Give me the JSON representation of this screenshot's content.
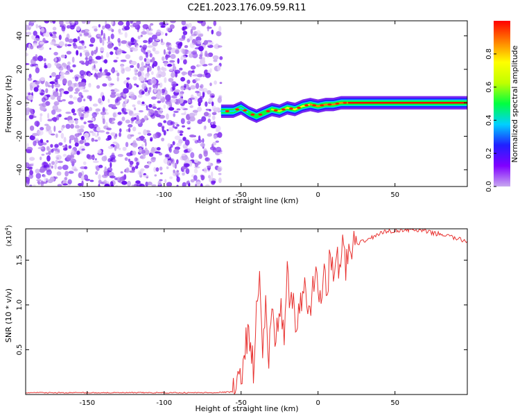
{
  "title": "C2E1.2023.176.09.59.R11",
  "chart_data": [
    {
      "type": "heatmap",
      "xlabel": "Height of straight line (km)",
      "ylabel": "Frequency (Hz)",
      "xlim": [
        -190,
        97
      ],
      "ylim": [
        -50,
        49
      ],
      "xticks": [
        -150,
        -100,
        -50,
        0,
        50
      ],
      "yticks": [
        -40,
        -20,
        0,
        20,
        40
      ],
      "grid": false,
      "colorbar": {
        "label": "Normalized spectral amplitude",
        "range": [
          0,
          1
        ],
        "ticks": [
          "0.0",
          "0.2",
          "0.4",
          "0.6",
          "0.8"
        ],
        "colormap": [
          "#c8a8f0",
          "#8000ff",
          "#2020ff",
          "#00d0ff",
          "#00ff40",
          "#c0ff00",
          "#ffff00",
          "#ff8000",
          "#ff0000"
        ]
      },
      "noise_region_x": [
        -190,
        -63
      ],
      "signal_ridge": {
        "x": [
          -63,
          -55,
          -50,
          -45,
          -40,
          -35,
          -30,
          -25,
          -20,
          -15,
          -10,
          -5,
          0,
          5,
          10,
          15,
          20,
          30,
          50,
          70,
          97
        ],
        "y": [
          -5,
          -5,
          -3,
          -6,
          -8,
          -6,
          -4,
          -5,
          -3,
          -4,
          -2,
          -1,
          -2,
          -1,
          -1,
          0,
          0,
          0,
          0,
          0,
          0
        ],
        "amplitude": [
          0.35,
          0.4,
          0.4,
          0.45,
          0.5,
          0.55,
          0.6,
          0.65,
          0.7,
          0.75,
          0.8,
          0.82,
          0.85,
          0.88,
          0.9,
          0.92,
          0.95,
          1.0,
          1.0,
          1.0,
          1.0
        ]
      }
    },
    {
      "type": "line",
      "xlabel": "Height of straight line (km)",
      "ylabel": "SNR (10 * v/v)",
      "y_multiplier": "(x10",
      "y_multiplier_exp": "4",
      "y_multiplier_close": ")",
      "xlim": [
        -190,
        97
      ],
      "ylim": [
        0,
        1.85
      ],
      "xticks": [
        -150,
        -100,
        -50,
        0,
        50
      ],
      "yticks": [
        "0.5",
        "1.0",
        "1.5"
      ],
      "grid": false,
      "series": [
        {
          "color": "#e8312f",
          "x": [
            -190,
            -170,
            -150,
            -130,
            -110,
            -90,
            -70,
            -55,
            -52,
            -50,
            -48,
            -45,
            -42,
            -40,
            -38,
            -36,
            -34,
            -32,
            -30,
            -28,
            -26,
            -24,
            -22,
            -20,
            -18,
            -16,
            -14,
            -12,
            -10,
            -8,
            -6,
            -4,
            -2,
            0,
            2,
            4,
            6,
            8,
            10,
            12,
            14,
            16,
            18,
            20,
            22,
            24,
            26,
            28,
            30,
            35,
            40,
            45,
            50,
            55,
            60,
            65,
            70,
            75,
            80,
            85,
            90,
            97
          ],
          "y": [
            0.02,
            0.02,
            0.02,
            0.02,
            0.02,
            0.02,
            0.02,
            0.03,
            0.1,
            0.2,
            0.5,
            0.7,
            0.3,
            0.9,
            1.3,
            0.5,
            1.0,
            0.4,
            0.9,
            0.6,
            0.8,
            1.1,
            0.5,
            1.35,
            0.9,
            1.1,
            0.7,
            1.0,
            1.0,
            1.2,
            0.9,
            1.1,
            1.3,
            1.25,
            1.0,
            1.4,
            1.2,
            1.6,
            1.3,
            1.5,
            1.45,
            1.7,
            1.4,
            1.6,
            1.55,
            1.75,
            1.65,
            1.7,
            1.72,
            1.75,
            1.8,
            1.82,
            1.83,
            1.84,
            1.84,
            1.83,
            1.82,
            1.8,
            1.79,
            1.77,
            1.74,
            1.71
          ]
        }
      ]
    }
  ]
}
